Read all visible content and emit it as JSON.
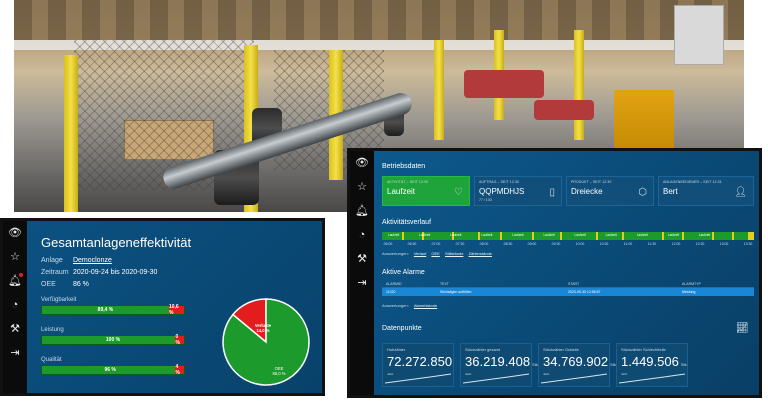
{
  "oee": {
    "title": "Gesamtanlageneffektivität",
    "meta": [
      {
        "label": "Anlage",
        "value": "Democlonze",
        "link": true
      },
      {
        "label": "Zeitraum",
        "value": "2020-09-24 bis 2020-09-30",
        "link": false
      },
      {
        "label": "OEE",
        "value": "86 %",
        "link": false
      }
    ],
    "bars": [
      {
        "label": "Verfügbarkeit",
        "green_pct": 89.4,
        "green_text": "89,4 %",
        "red_text": "10,6 %"
      },
      {
        "label": "Leistung",
        "green_pct": 100,
        "green_text": "100 %",
        "red_text": "0 %"
      },
      {
        "label": "Qualität",
        "green_pct": 96,
        "green_text": "96 %",
        "red_text": "4 %"
      }
    ],
    "pie": {
      "slices": [
        {
          "label": "Verluste",
          "value_text": "14,0 %",
          "value": 14.0,
          "color": "#e31d1d"
        },
        {
          "label": "OEE",
          "value_text": "86,0 %",
          "value": 86.0,
          "color": "#1d9a2c"
        }
      ]
    }
  },
  "rail_icons": [
    "eye-icon",
    "star-icon",
    "bell-icon",
    "chart-pie-icon",
    "tools-icon",
    "logout-icon"
  ],
  "main": {
    "section_betrieb": "Betriebsdaten",
    "cards": [
      {
        "label": "AKTIVITÄT – SEIT 12:30",
        "value": "Laufzeit",
        "sub": "",
        "icon": "heart-pulse-icon",
        "active": true
      },
      {
        "label": "AUFTRAG – SEIT 12:30",
        "value": "QQPMDHJS",
        "sub": "77 / 100",
        "icon": "document-icon",
        "active": false
      },
      {
        "label": "PRODUKT – SEIT 12:30",
        "value": "Dreiecke",
        "sub": "",
        "icon": "cube-icon",
        "active": false
      },
      {
        "label": "ANLAGENBEDIENER – SEIT 12:31",
        "value": "Bert",
        "sub": "",
        "icon": "user-icon",
        "active": false
      }
    ],
    "section_activity": "Aktivitätsverlauf",
    "timeline_ticks": [
      "06:00",
      "06:30",
      "07:00",
      "07:30",
      "08:00",
      "08:30",
      "09:00",
      "09:30",
      "10:00",
      "10:30",
      "11:00",
      "11:30",
      "12:00",
      "12:30",
      "13:00",
      "13:30"
    ],
    "timeline_labels": [
      "Laufzeit",
      "Laufzeit",
      "Laufzeit",
      "Laufzeit",
      "Laufzeit",
      "Laufzeit",
      "Laufzeit",
      "Laufzeit",
      "Laufzeit",
      "Laufzeit",
      "Laufzeit"
    ],
    "activity_links_label": "Auswertungen:",
    "activity_links": [
      "Verlauf",
      "OEE",
      "Stillstände",
      "Zählerstände"
    ],
    "section_alarms": "Aktive Alarme",
    "alarm_headers": [
      "ALARMID",
      "TEXT",
      "START",
      "ALARMTYP"
    ],
    "alarm_rows": [
      [
        "11020",
        "Stichsägen auffüllen",
        "2020-09-30 12:56:57",
        "Meldung"
      ]
    ],
    "alarm_links_label": "Auswertungen:",
    "alarm_links": [
      "Alarmhistorie"
    ],
    "section_data": "Datenpunkte",
    "datapoints": [
      {
        "label": "Hubzähler",
        "value": "72.272.850",
        "unit": "",
        "note": "Jetzt"
      },
      {
        "label": "Stückzähler gesamt",
        "value": "36.219.408",
        "unit": "Stk.",
        "note": "Jetzt"
      },
      {
        "label": "Stückzähler Gutteile",
        "value": "34.769.902",
        "unit": "Stk.",
        "note": "Jetzt"
      },
      {
        "label": "Stückzähler Schlechtteile",
        "value": "1.449.506",
        "unit": "Stk.",
        "note": "Jetzt"
      }
    ]
  }
}
